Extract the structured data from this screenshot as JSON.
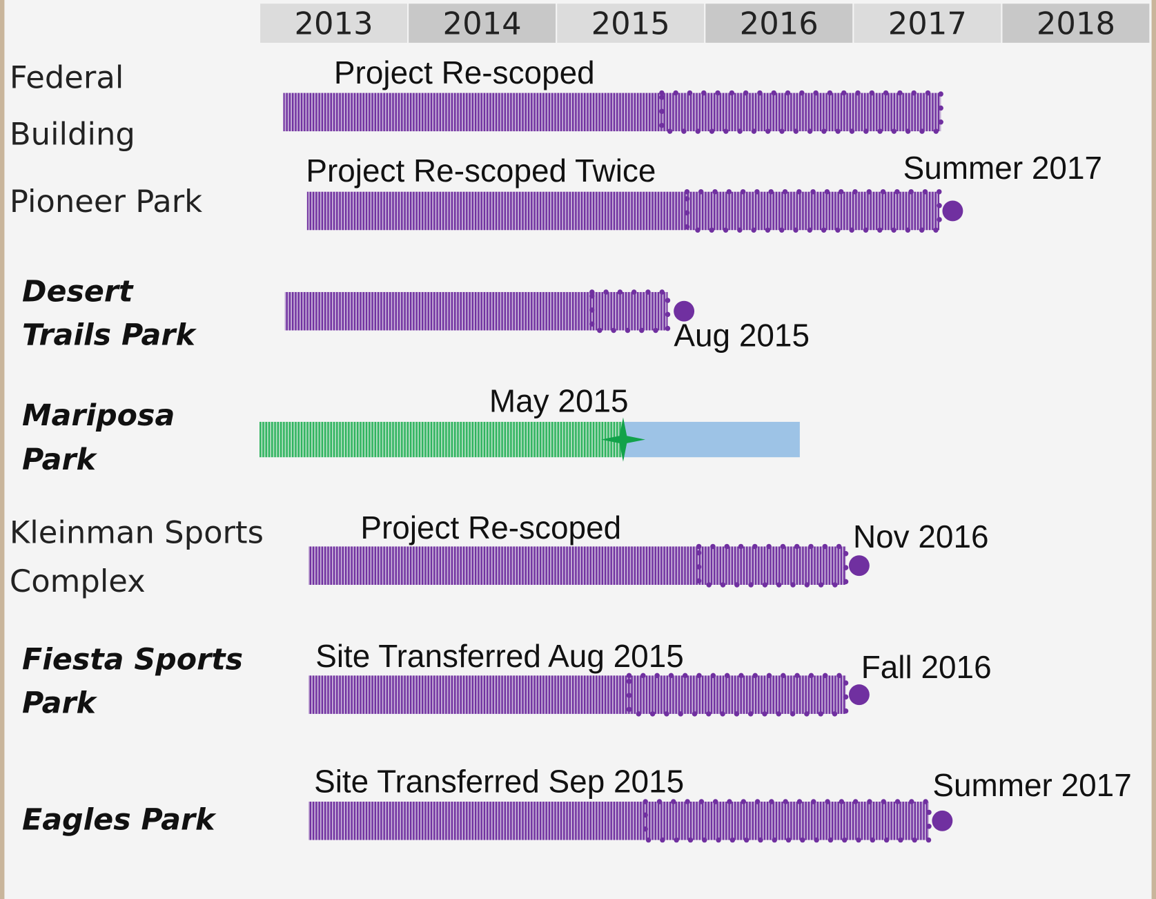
{
  "chart_data": {
    "type": "gantt",
    "xlim": [
      2013,
      2019
    ],
    "xticks": [
      2013,
      2014,
      2015,
      2016,
      2017,
      2018
    ],
    "rows": [
      {
        "label": [
          "Federal",
          "Building"
        ],
        "style": "regular",
        "note": "Project Re-scoped",
        "segments": [
          {
            "start": 2013.16,
            "end": 2015.71,
            "color": "#7030a0",
            "fill": "hatched"
          },
          {
            "start": 2015.71,
            "end": 2017.59,
            "color": "#7030a0",
            "fill": "hatched",
            "outline": "dotted"
          }
        ]
      },
      {
        "label": [
          "Pioneer Park"
        ],
        "style": "regular",
        "note": "Project Re-scoped Twice",
        "segments": [
          {
            "start": 2013.32,
            "end": 2015.88,
            "color": "#7030a0",
            "fill": "hatched"
          },
          {
            "start": 2015.88,
            "end": 2017.58,
            "color": "#7030a0",
            "fill": "hatched",
            "outline": "dotted"
          }
        ],
        "milestone": {
          "value": 2017.67,
          "label": "Summer 2017",
          "shape": "dot",
          "color": "#7030a0"
        }
      },
      {
        "label": [
          "Desert",
          "Trails Park"
        ],
        "style": "bold-italic",
        "segments": [
          {
            "start": 2013.17,
            "end": 2015.24,
            "color": "#7030a0",
            "fill": "hatched"
          },
          {
            "start": 2015.24,
            "end": 2015.75,
            "color": "#7030a0",
            "fill": "hatched",
            "outline": "dotted"
          }
        ],
        "milestone": {
          "value": 2015.86,
          "label": "Aug 2015",
          "shape": "dot",
          "color": "#7030a0"
        }
      },
      {
        "label": [
          "Mariposa",
          "Park"
        ],
        "style": "bold-italic",
        "segments": [
          {
            "start": 2013.0,
            "end": 2015.45,
            "color": "#2db35d",
            "fill": "hatched"
          },
          {
            "start": 2015.45,
            "end": 2016.64,
            "color": "#9dc3e6",
            "fill": "solid"
          }
        ],
        "milestone": {
          "value": 2015.45,
          "label": "May 2015",
          "shape": "star",
          "color": "#12a24a"
        }
      },
      {
        "label": [
          "Kleinman Sports",
          "Complex"
        ],
        "style": "regular",
        "note": "Project Re-scoped",
        "segments": [
          {
            "start": 2013.33,
            "end": 2015.96,
            "color": "#7030a0",
            "fill": "hatched"
          },
          {
            "start": 2015.96,
            "end": 2016.95,
            "color": "#7030a0",
            "fill": "hatched",
            "outline": "dotted"
          }
        ],
        "milestone": {
          "value": 2017.04,
          "label": "Nov 2016",
          "shape": "dot",
          "color": "#7030a0"
        }
      },
      {
        "label": [
          "Fiesta Sports",
          "Park"
        ],
        "style": "bold-italic",
        "note": "Site Transferred Aug 2015",
        "segments": [
          {
            "start": 2013.33,
            "end": 2015.49,
            "color": "#7030a0",
            "fill": "hatched"
          },
          {
            "start": 2015.49,
            "end": 2016.95,
            "color": "#7030a0",
            "fill": "hatched",
            "outline": "dotted"
          }
        ],
        "milestone": {
          "value": 2017.04,
          "label": "Fall 2016",
          "shape": "dot",
          "color": "#7030a0"
        }
      },
      {
        "label": [
          "Eagles Park"
        ],
        "style": "bold-italic",
        "note": "Site Transferred Sep 2015",
        "segments": [
          {
            "start": 2013.33,
            "end": 2015.6,
            "color": "#7030a0",
            "fill": "hatched"
          },
          {
            "start": 2015.6,
            "end": 2017.51,
            "color": "#7030a0",
            "fill": "hatched",
            "outline": "dotted"
          }
        ],
        "milestone": {
          "value": 2017.6,
          "label": "Summer 2017",
          "shape": "dot",
          "color": "#7030a0"
        }
      }
    ]
  }
}
